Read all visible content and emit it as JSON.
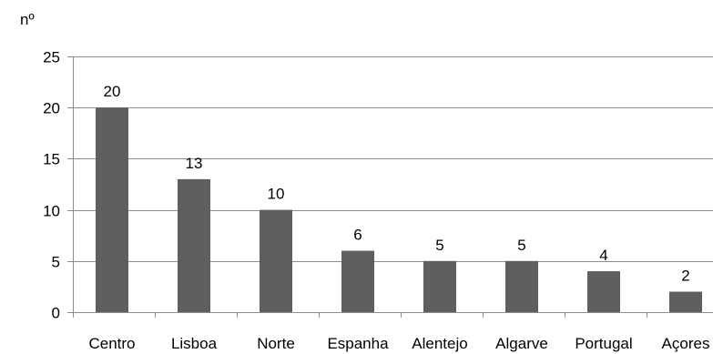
{
  "chart_data": {
    "type": "bar",
    "title": "",
    "xlabel": "",
    "ylabel": "nº",
    "categories": [
      "Centro",
      "Lisboa",
      "Norte",
      "Espanha",
      "Alentejo",
      "Algarve",
      "Portugal",
      "Açores"
    ],
    "values": [
      20,
      13,
      10,
      6,
      5,
      5,
      4,
      2
    ],
    "ylim": [
      0,
      25
    ],
    "yticks": [
      0,
      5,
      10,
      15,
      20,
      25
    ],
    "grid": true,
    "legend": "none",
    "data_labels": true,
    "colors": {
      "bar": "#5f5f5f",
      "grid": "#8c8c8c",
      "axis": "#8c8c8c",
      "text": "#000000"
    }
  }
}
